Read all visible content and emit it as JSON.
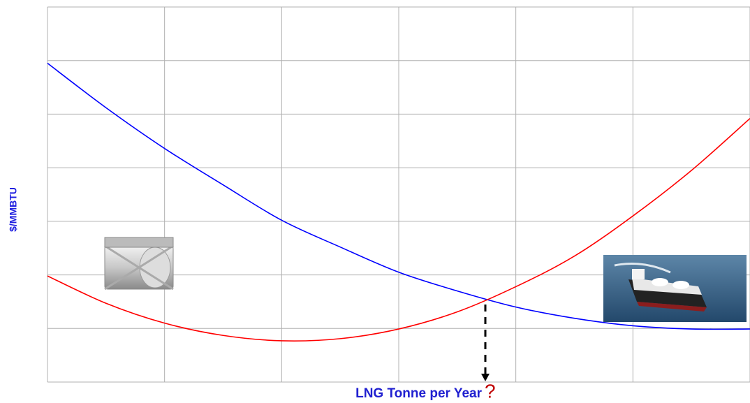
{
  "chart_data": {
    "type": "line",
    "y_label": "$/MMBTU",
    "x_label": "LNG Tonne per Year",
    "annotation": "?",
    "x": [
      0,
      0.5,
      1,
      1.5,
      2,
      2.5,
      3,
      3.5,
      4,
      4.5,
      5,
      5.5,
      6
    ],
    "series": [
      {
        "color": "#0000ff",
        "values": [
          5.95,
          5.12,
          4.36,
          3.68,
          3.02,
          2.52,
          2.05,
          1.7,
          1.4,
          1.19,
          1.05,
          0.99,
          0.99
        ]
      },
      {
        "color": "#ff0000",
        "values": [
          1.98,
          1.47,
          1.1,
          0.87,
          0.77,
          0.81,
          0.99,
          1.31,
          1.78,
          2.35,
          3.1,
          3.95,
          4.92
        ]
      }
    ],
    "xlim": [
      0,
      6
    ],
    "xticks": [
      0,
      1,
      2,
      3,
      4,
      5,
      6
    ],
    "ylim": [
      0,
      7
    ],
    "yticks": [
      0,
      1,
      2,
      3,
      4,
      5,
      6,
      7
    ],
    "grid": true
  }
}
